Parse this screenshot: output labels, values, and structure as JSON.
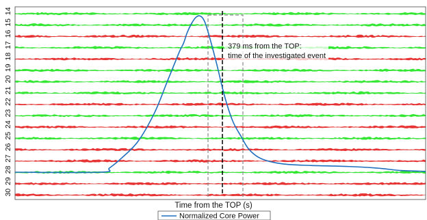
{
  "chart_data": {
    "type": "line",
    "xlabel": "Time from the TOP (s)",
    "annotation": {
      "line1": "379 ms from the TOP:",
      "line2": "time of the investigated event"
    },
    "channels": [
      {
        "label": "14",
        "color": "green"
      },
      {
        "label": "15",
        "color": "green"
      },
      {
        "label": "16",
        "color": "red"
      },
      {
        "label": "17",
        "color": "green"
      },
      {
        "label": "18",
        "color": "red"
      },
      {
        "label": "19",
        "color": "green"
      },
      {
        "label": "20",
        "color": "green"
      },
      {
        "label": "21",
        "color": "green"
      },
      {
        "label": "22",
        "color": "red"
      },
      {
        "label": "23",
        "color": "green"
      },
      {
        "label": "24",
        "color": "red"
      },
      {
        "label": "25",
        "color": "green"
      },
      {
        "label": "26",
        "color": "red"
      },
      {
        "label": "27",
        "color": "red"
      },
      {
        "label": "28",
        "color": "green"
      },
      {
        "label": "29",
        "color": "red"
      },
      {
        "label": "30",
        "color": "red"
      }
    ],
    "colors": {
      "green": "#1ee61e",
      "red": "#e61e1e",
      "curve": "#1f6fbf"
    },
    "series": [
      {
        "name": "Normalized Core Power",
        "shape": [
          [
            0.0,
            0.065
          ],
          [
            0.21,
            0.065
          ],
          [
            0.23,
            0.09
          ],
          [
            0.26,
            0.15
          ],
          [
            0.3,
            0.25
          ],
          [
            0.34,
            0.42
          ],
          [
            0.37,
            0.6
          ],
          [
            0.4,
            0.78
          ],
          [
            0.41,
            0.83
          ],
          [
            0.42,
            0.9
          ],
          [
            0.43,
            0.95
          ],
          [
            0.44,
            0.985
          ],
          [
            0.45,
            0.995
          ],
          [
            0.46,
            0.97
          ],
          [
            0.47,
            0.9
          ],
          [
            0.49,
            0.72
          ],
          [
            0.51,
            0.52
          ],
          [
            0.53,
            0.37
          ],
          [
            0.55,
            0.28
          ],
          [
            0.57,
            0.2
          ],
          [
            0.6,
            0.145
          ],
          [
            0.65,
            0.115
          ],
          [
            0.72,
            0.105
          ],
          [
            0.8,
            0.1
          ],
          [
            0.88,
            0.09
          ],
          [
            0.94,
            0.075
          ],
          [
            1.0,
            0.07
          ]
        ]
      }
    ],
    "event_fraction": 0.505,
    "window_fraction": [
      0.47,
      0.555
    ],
    "grid": false,
    "legend_position": "bottom-center"
  }
}
